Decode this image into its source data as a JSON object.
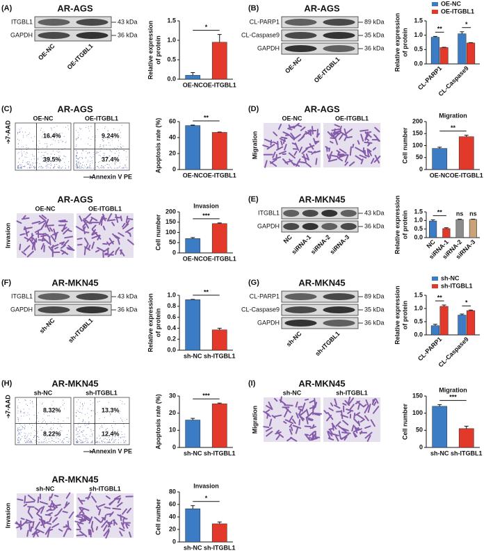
{
  "panels": [
    {
      "label": "(A)",
      "title": "AR-AGS",
      "blot": {
        "rows": [
          "ITGBL1",
          "GAPDH"
        ],
        "sizes": [
          "43 kDa",
          "36 kDa"
        ],
        "lanes": [
          "OE-NC",
          "OE-ITGBL1"
        ]
      },
      "chart": {
        "type": "bar",
        "categories": [
          "OE-NC",
          "OE-ITGBL1"
        ],
        "values": [
          0.1,
          0.95
        ],
        "errors": [
          0.07,
          0.2
        ],
        "colors": [
          "#3b7cc4",
          "#e2392a"
        ],
        "ylabel": [
          "Relative expression",
          "of protein"
        ],
        "ylim": [
          0,
          1.5
        ],
        "yticks": [
          {
            "value": 0,
            "label": "0.0"
          },
          0.5,
          {
            "value": 1,
            "label": "1.0"
          },
          1.5
        ],
        "significance": [
          "*"
        ]
      }
    },
    {
      "label": "(B)",
      "title": "AR-AGS",
      "blot": {
        "rows": [
          "CL-PARP1",
          "CL-Caspase9",
          "GAPDH"
        ],
        "sizes": [
          "89 kDa",
          "35 kDa",
          "36 kDa"
        ],
        "lanes": [
          "OE-NC",
          "OE-ITGBL1"
        ]
      },
      "chart": {
        "type": "bar",
        "categories": [
          "CL-PARP1",
          "CL-Caspase9"
        ],
        "series": [
          {
            "name": "OE-NC",
            "color": "#3b7cc4",
            "values": [
              0.93,
              1.05
            ],
            "errors": [
              0.03,
              0.07
            ]
          },
          {
            "name": "OE-ITGBL1",
            "color": "#e2392a",
            "values": [
              0.57,
              0.73
            ],
            "errors": [
              0.01,
              0.01
            ]
          }
        ],
        "ylabel": [
          "Relative expression",
          "of protein"
        ],
        "ylim": [
          0,
          1.5
        ],
        "yticks": [
          {
            "value": 0,
            "label": "0.0"
          },
          0.5,
          {
            "value": 1,
            "label": "1.0"
          },
          1.5
        ],
        "significance": [
          "**",
          "*"
        ]
      }
    },
    {
      "label": "(C)",
      "title": "AR-AGS",
      "flow": {
        "y_label": "7-AAD",
        "x_label": "Annexin V PE",
        "columns": [
          "OE-NC",
          "OE-ITGBL1"
        ],
        "upper_right": [
          "16.4%",
          "9.24%"
        ],
        "lower_right": [
          "39.5%",
          "37.4%"
        ]
      },
      "chart": {
        "type": "bar",
        "categories": [
          "OE-NC",
          "OE-ITGBL1"
        ],
        "values": [
          55,
          46.5
        ],
        "errors": [
          0.6,
          0.5
        ],
        "colors": [
          "#3b7cc4",
          "#e2392a"
        ],
        "ylabel": [
          "Apoptosis rate (%)"
        ],
        "ylim": [
          0,
          60
        ],
        "yticks": [
          0,
          20,
          40,
          60
        ],
        "significance": [
          "**"
        ]
      }
    },
    {
      "label": "(D)",
      "title": "AR-AGS",
      "images": {
        "side_label": "Migration",
        "columns": [
          "OE-NC",
          "OE-ITGBL1"
        ]
      },
      "chart": {
        "type": "bar",
        "title": "Migration",
        "categories": [
          "OE-NC",
          "OE-ITGBL1"
        ],
        "values": [
          88,
          137
        ],
        "errors": [
          5,
          6
        ],
        "colors": [
          "#3b7cc4",
          "#e2392a"
        ],
        "ylabel": [
          "Cell number"
        ],
        "ylim": [
          0,
          200
        ],
        "yticks": [
          0,
          50,
          100,
          150,
          200
        ],
        "significance": [
          "**"
        ]
      }
    },
    {
      "title": "AR-AGS",
      "images": {
        "side_label": "Invasion",
        "columns": [
          "OE-NC",
          "OE-ITGBL1"
        ]
      },
      "chart": {
        "type": "bar",
        "title": "Invasion",
        "categories": [
          "OE-NC",
          "OE-ITGBL1"
        ],
        "values": [
          70,
          143
        ],
        "errors": [
          5,
          3
        ],
        "colors": [
          "#3b7cc4",
          "#e2392a"
        ],
        "ylabel": [
          "Cell number"
        ],
        "ylim": [
          0,
          200
        ],
        "yticks": [
          0,
          50,
          100,
          150,
          200
        ],
        "significance": [
          "***"
        ]
      }
    },
    {
      "label": "(E)",
      "title": "AR-MKN45",
      "blot": {
        "rows": [
          "ITGBL1",
          "GAPDH"
        ],
        "sizes": [
          "43 kDa",
          "36 kDa"
        ],
        "lanes": [
          "NC",
          "siRNA-1",
          "siRNA-2",
          "siRNA-3"
        ]
      },
      "chart": {
        "type": "bar",
        "categories": [
          "NC",
          "siRNA-1",
          "siRNA-2",
          "siRNA-3"
        ],
        "values": [
          0.97,
          0.53,
          1.05,
          1.06
        ],
        "errors": [
          0.07,
          0.05,
          0.03,
          0.02
        ],
        "colors": [
          "#3b7cc4",
          "#e2392a",
          "#8c8c8c",
          "#c9a27a"
        ],
        "ylabel": [
          "Relative expression",
          "of protein"
        ],
        "ylim": [
          0,
          1.5
        ],
        "yticks": [
          {
            "value": 0,
            "label": "0.0"
          },
          0.5,
          {
            "value": 1,
            "label": "1.0"
          },
          1.5
        ],
        "significance": [
          "**",
          "ns",
          "ns"
        ]
      }
    },
    {
      "label": "(F)",
      "title": "AR-MKN45",
      "blot": {
        "rows": [
          "ITGBL1",
          "GAPDH"
        ],
        "sizes": [
          "43 kDa",
          "36 kDa"
        ],
        "lanes": [
          "sh-NC",
          "sh-ITGBL1"
        ]
      },
      "chart": {
        "type": "bar",
        "categories": [
          "sh-NC",
          "sh-ITGBL1"
        ],
        "values": [
          0.92,
          0.37
        ],
        "errors": [
          0.005,
          0.03
        ],
        "colors": [
          "#3b7cc4",
          "#e2392a"
        ],
        "ylabel": [
          "Relative expression",
          "of protein"
        ],
        "ylim": [
          0,
          1
        ],
        "yticks": [
          {
            "value": 0,
            "label": "0.0"
          },
          0.2,
          0.4,
          0.6,
          0.8,
          {
            "value": 1,
            "label": "1.0"
          }
        ],
        "significance": [
          "**"
        ]
      }
    },
    {
      "label": "(G)",
      "title": "AR-MKN45",
      "blot": {
        "rows": [
          "CL-PARP1",
          "CL-Caspase9",
          "GAPDH"
        ],
        "sizes": [
          "89 kDa",
          "35 kDa",
          "36 kDa"
        ],
        "lanes": [
          "sh-NC",
          "sh-ITGBL1"
        ]
      },
      "chart": {
        "type": "bar",
        "categories": [
          "CL-PARP1",
          "CL-Caspase9"
        ],
        "series": [
          {
            "name": "sh-NC",
            "color": "#3b7cc4",
            "values": [
              0.35,
              0.75
            ],
            "errors": [
              0.05,
              0.04
            ]
          },
          {
            "name": "sh-ITGBL1",
            "color": "#e2392a",
            "values": [
              1.08,
              0.92
            ],
            "errors": [
              0.05,
              0.02
            ]
          }
        ],
        "ylabel": [
          "Relative expression",
          "of protein"
        ],
        "ylim": [
          0,
          1.5
        ],
        "yticks": [
          {
            "value": 0,
            "label": "0.0"
          },
          0.5,
          {
            "value": 1,
            "label": "1.0"
          },
          1.5
        ],
        "significance": [
          "**",
          "*"
        ]
      }
    },
    {
      "label": "(H)",
      "title": "AR-MKN45",
      "flow": {
        "y_label": "7-AAD",
        "x_label": "Annexin V PE",
        "columns": [
          "sh-NC",
          "sh-ITGBL1"
        ],
        "upper_right": [
          "8.32%",
          "13.3%"
        ],
        "lower_right": [
          "8.22%",
          "12.4%"
        ]
      },
      "chart": {
        "type": "bar",
        "categories": [
          "sh-NC",
          "sh-ITGBL1"
        ],
        "values": [
          16,
          25.5
        ],
        "errors": [
          1,
          0.4
        ],
        "colors": [
          "#3b7cc4",
          "#e2392a"
        ],
        "ylabel": [
          "Apoptosis rate (%)"
        ],
        "ylim": [
          0,
          30
        ],
        "yticks": [
          0,
          10,
          20,
          30
        ],
        "significance": [
          "***"
        ]
      }
    },
    {
      "label": "(I)",
      "title": "AR-MKN45",
      "images": {
        "side_label": "Migration",
        "columns": [
          "sh-NC",
          "sh-ITGBL1"
        ]
      },
      "chart": {
        "type": "bar",
        "title": "Migration",
        "categories": [
          "sh-NC",
          "sh-ITGBL1"
        ],
        "values": [
          120,
          55
        ],
        "errors": [
          5,
          7
        ],
        "colors": [
          "#3b7cc4",
          "#e2392a"
        ],
        "ylabel": [
          "Cell number"
        ],
        "ylim": [
          0,
          150
        ],
        "yticks": [
          0,
          50,
          100,
          150
        ],
        "significance": [
          "***"
        ]
      }
    },
    {
      "title": "AR-MKN45",
      "images": {
        "side_label": "Invasion",
        "columns": [
          "sh-NC",
          "sh-ITGBL1"
        ]
      },
      "chart": {
        "type": "bar",
        "title": "Invasion",
        "categories": [
          "sh-NC",
          "sh-ITGBL1"
        ],
        "values": [
          53,
          29
        ],
        "errors": [
          5,
          3
        ],
        "colors": [
          "#3b7cc4",
          "#e2392a"
        ],
        "ylabel": [
          "Cell number"
        ],
        "ylim": [
          0,
          80
        ],
        "yticks": [
          0,
          20,
          40,
          60,
          80
        ],
        "significance": [
          "*"
        ]
      }
    }
  ]
}
